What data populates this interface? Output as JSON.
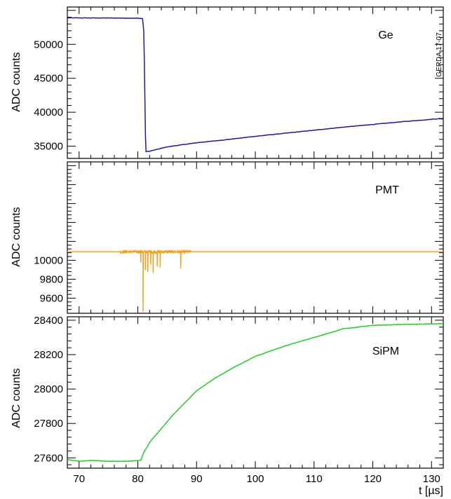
{
  "watermark": "GERDA 17-07",
  "colors": {
    "ge": "#1a1aa0",
    "pmt": "#f5a01a",
    "sipm": "#22cc22"
  },
  "x_axis": {
    "label": "t [µs]",
    "range": [
      68,
      132
    ],
    "ticks": [
      70,
      80,
      90,
      100,
      110,
      120,
      130
    ]
  },
  "chart_data": [
    {
      "type": "line",
      "name": "Ge",
      "title": "Ge",
      "xlabel": "",
      "ylabel": "ADC counts",
      "xlim": [
        68,
        132
      ],
      "ylim": [
        33200,
        55500
      ],
      "yticks": [
        35000,
        40000,
        45000,
        50000
      ],
      "grid": false,
      "points": [
        [
          68,
          53900
        ],
        [
          75,
          53880
        ],
        [
          80,
          53850
        ],
        [
          80.8,
          53800
        ],
        [
          81.0,
          52000
        ],
        [
          81.1,
          48000
        ],
        [
          81.2,
          42000
        ],
        [
          81.3,
          36500
        ],
        [
          81.4,
          34200
        ],
        [
          82,
          34250
        ],
        [
          85,
          34900
        ],
        [
          90,
          35500
        ],
        [
          95,
          35950
        ],
        [
          100,
          36450
        ],
        [
          105,
          36900
        ],
        [
          110,
          37350
        ],
        [
          115,
          37800
        ],
        [
          120,
          38200
        ],
        [
          125,
          38600
        ],
        [
          132,
          39100
        ]
      ]
    },
    {
      "type": "line",
      "name": "PMT",
      "title": "PMT",
      "xlabel": "",
      "ylabel": "ADC counts",
      "xlim": [
        68,
        132
      ],
      "ylim": [
        9440,
        11040
      ],
      "yticks": [
        9600,
        9800,
        10000
      ],
      "grid": false,
      "baseline": 10090,
      "noise_window": [
        77,
        89
      ],
      "spikes": [
        {
          "x": 80.5,
          "min": 9980
        },
        {
          "x": 80.9,
          "min": 9460
        },
        {
          "x": 81.3,
          "min": 9900
        },
        {
          "x": 81.7,
          "min": 9880
        },
        {
          "x": 82.2,
          "min": 9960
        },
        {
          "x": 82.6,
          "min": 9870
        },
        {
          "x": 83.3,
          "min": 9940
        },
        {
          "x": 83.8,
          "min": 9930
        },
        {
          "x": 87.3,
          "min": 9920
        }
      ]
    },
    {
      "type": "line",
      "name": "SiPM",
      "title": "SiPM",
      "xlabel": "t [µs]",
      "ylabel": "ADC counts",
      "xlim": [
        68,
        132
      ],
      "ylim": [
        27540,
        28420
      ],
      "yticks": [
        27600,
        27800,
        28000,
        28200,
        28400
      ],
      "grid": false,
      "points": [
        [
          68,
          27590
        ],
        [
          70,
          27580
        ],
        [
          72,
          27585
        ],
        [
          75,
          27580
        ],
        [
          78,
          27580
        ],
        [
          80.5,
          27585
        ],
        [
          81,
          27630
        ],
        [
          82,
          27690
        ],
        [
          84,
          27770
        ],
        [
          86,
          27850
        ],
        [
          88,
          27920
        ],
        [
          90,
          27990
        ],
        [
          93,
          28060
        ],
        [
          96,
          28120
        ],
        [
          100,
          28190
        ],
        [
          105,
          28250
        ],
        [
          110,
          28300
        ],
        [
          115,
          28350
        ],
        [
          120,
          28370
        ],
        [
          125,
          28375
        ],
        [
          132,
          28380
        ]
      ]
    }
  ]
}
